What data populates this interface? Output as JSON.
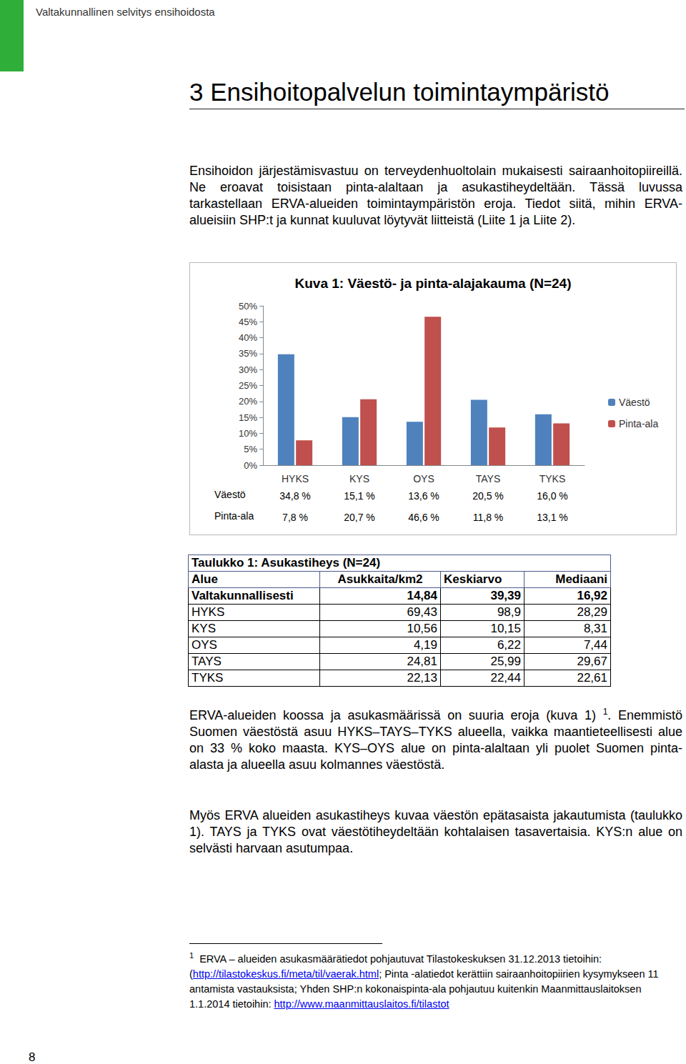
{
  "header": {
    "running_title": "Valtakunnallinen selvitys ensihoidosta"
  },
  "heading": "3 Ensihoitopalvelun toimintaympäristö",
  "paragraphs_before": [
    [
      {
        "text": "Ensihoidon järjestämisvastuu on terveydenhuoltolain mukaisesti sairaanhoitopiireillä. Ne eroavat toisistaan pinta-alaltaan ja asukastiheydeltään. Tässä luvussa tarkastellaan ERVA-alueiden toimintaympäristön eroja. Tiedot siitä, mihin ERVA-alueisiin SHP:t ja kunnat kuuluvat löytyvät liitteistä (Liite 1 ja Liite 2)."
      }
    ]
  ],
  "chart_data": {
    "type": "bar",
    "title": "Kuva 1: Väestö- ja pinta-alajakauma (N=24)",
    "categories": [
      "HYKS",
      "KYS",
      "OYS",
      "TAYS",
      "TYKS"
    ],
    "series": [
      {
        "name": "Väestö",
        "color": "#4f81bd",
        "values": [
          34.8,
          15.1,
          13.6,
          20.5,
          16.0
        ],
        "value_labels": [
          "34,8 %",
          "15,1 %",
          "13,6 %",
          "20,5 %",
          "16,0 %"
        ]
      },
      {
        "name": "Pinta-ala",
        "color": "#c0504d",
        "values": [
          7.8,
          20.7,
          46.6,
          11.8,
          13.1
        ],
        "value_labels": [
          "7,8 %",
          "20,7 %",
          "46,6 %",
          "11,8 %",
          "13,1 %"
        ]
      }
    ],
    "ylim": [
      0,
      50
    ],
    "yticks": [
      {
        "value": 0,
        "label": "0%"
      },
      {
        "value": 5,
        "label": "5%"
      },
      {
        "value": 10,
        "label": "10%"
      },
      {
        "value": 15,
        "label": "15%"
      },
      {
        "value": 20,
        "label": "20%"
      },
      {
        "value": 25,
        "label": "25%"
      },
      {
        "value": 30,
        "label": "30%"
      },
      {
        "value": 35,
        "label": "35%"
      },
      {
        "value": 40,
        "label": "40%"
      },
      {
        "value": 45,
        "label": "45%"
      },
      {
        "value": 50,
        "label": "50%"
      }
    ],
    "grid": false,
    "legend": "right"
  },
  "table": {
    "caption": "Taulukko 1: Asukastiheys (N=24)",
    "columns": [
      "Alue",
      "Asukkaita/km2",
      "Keskiarvo",
      "Mediaani"
    ],
    "rows": [
      [
        "Valtakunnallisesti",
        "14,84",
        "39,39",
        "16,92"
      ],
      [
        "HYKS",
        "69,43",
        "98,9",
        "28,29"
      ],
      [
        "KYS",
        "10,56",
        "10,15",
        "8,31"
      ],
      [
        "OYS",
        "4,19",
        "6,22",
        "7,44"
      ],
      [
        "TAYS",
        "24,81",
        "25,99",
        "29,67"
      ],
      [
        "TYKS",
        "22,13",
        "22,44",
        "22,61"
      ]
    ]
  },
  "paragraphs_after": [
    [
      {
        "text": "ERVA-alueiden koossa ja asukasmäärissä on suuria eroja (kuva 1) "
      },
      {
        "sup": "1"
      },
      {
        "text": ". Enemmistö Suomen väestöstä asuu HYKS–TAYS–TYKS alueella, vaikka maantieteellisesti alue on 33 % koko maasta. KYS–OYS alue on pinta-alaltaan yli puolet Suomen pinta-alasta ja alueella asuu kolmannes väestöstä."
      }
    ],
    [
      {
        "text": "Myös ERVA alueiden asukastiheys kuvaa väestön epätasaista jakautumista (taulukko 1). TAYS ja TYKS ovat väestötiheydeltään kohtalaisen tasavertaisia. KYS:n alue on selvästi harvaan asutumpaa."
      }
    ]
  ],
  "footnote": {
    "marker": "1",
    "parts": [
      {
        "text": "ERVA – alueiden asukasmäärätiedot pohjautuvat Tilastokeskuksen 31.12.2013 tietoihin: ("
      },
      {
        "link": "http://tilastokeskus.fi/meta/til/vaerak.html"
      },
      {
        "text": "; Pinta -alatiedot kerättiin sairaanhoitopiirien kysymykseen 11 antamista vastauksista; Yhden SHP:n kokonaispinta-ala pohjautuu kuitenkin Maanmittauslaitoksen 1.1.2014 tietoihin: "
      },
      {
        "link": "http://www.maanmittauslaitos.fi/tilastot"
      }
    ]
  },
  "page_number": 8
}
